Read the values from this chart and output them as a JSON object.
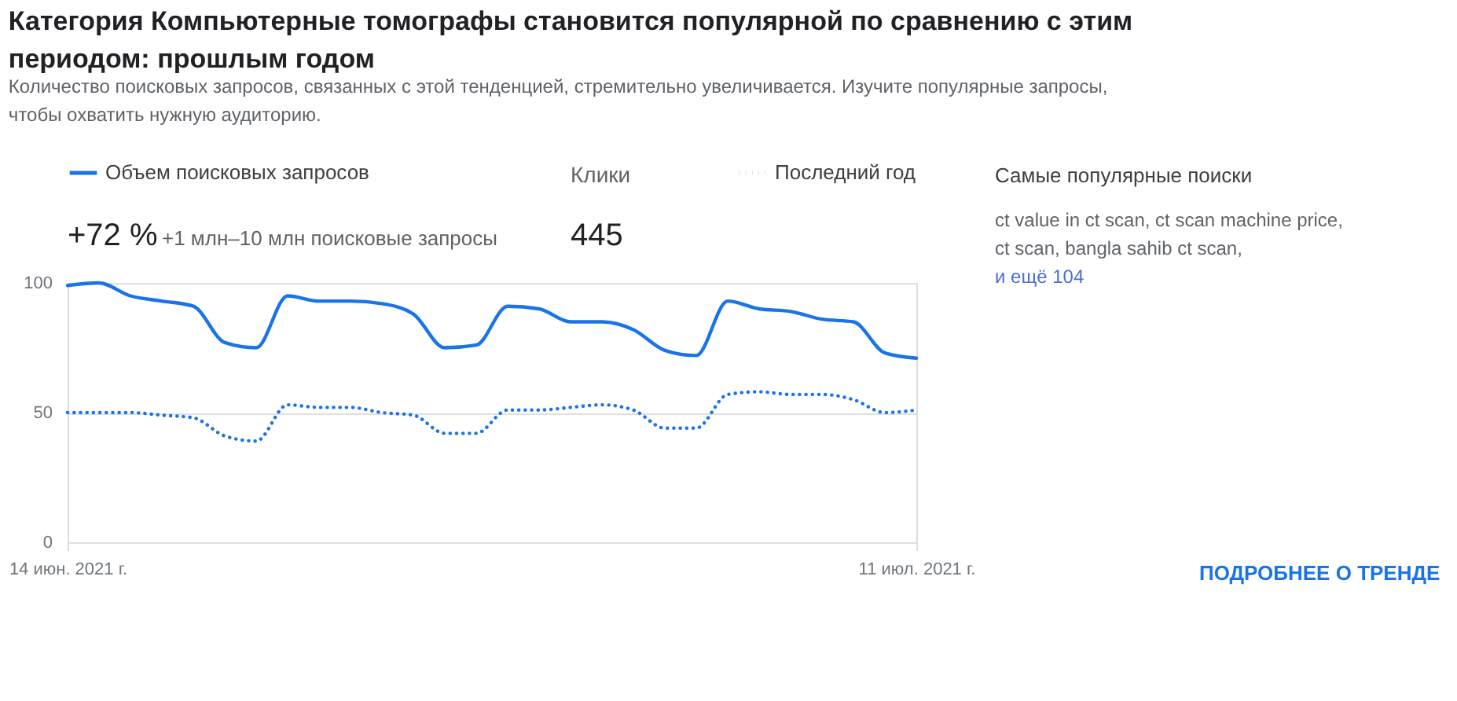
{
  "chart_data": {
    "type": "line",
    "title": "Категория Компьютерные томографы становится популярной по сравнению с этим периодом: прошлым годом",
    "subtitle": "Количество поисковых запросов, связанных с этой тенденцией, стремительно увеличивается. Изучите популярные запросы, чтобы охватить нужную аудиторию.",
    "x": [
      "2021-06-14",
      "2021-06-15",
      "2021-06-16",
      "2021-06-17",
      "2021-06-18",
      "2021-06-19",
      "2021-06-20",
      "2021-06-21",
      "2021-06-22",
      "2021-06-23",
      "2021-06-24",
      "2021-06-25",
      "2021-06-26",
      "2021-06-27",
      "2021-06-28",
      "2021-06-29",
      "2021-06-30",
      "2021-07-01",
      "2021-07-02",
      "2021-07-03",
      "2021-07-04",
      "2021-07-05",
      "2021-07-06",
      "2021-07-07",
      "2021-07-08",
      "2021-07-09",
      "2021-07-10",
      "2021-07-11"
    ],
    "series": [
      {
        "name": "Объем поисковых запросов",
        "color": "#1a73e8",
        "line_style": "solid",
        "values": [
          99,
          100,
          95,
          93,
          91,
          77,
          75,
          95,
          93,
          93,
          92,
          88,
          75,
          76,
          91,
          90,
          85,
          85,
          82,
          74,
          72,
          93,
          90,
          89,
          86,
          85,
          73,
          71
        ]
      },
      {
        "name": "Последний год",
        "color": "#1a73e8",
        "line_style": "dotted",
        "values": [
          50,
          50,
          50,
          49,
          48,
          41,
          39,
          53,
          52,
          52,
          50,
          49,
          42,
          42,
          51,
          51,
          52,
          53,
          51,
          44,
          44,
          57,
          58,
          57,
          57,
          55,
          50,
          51
        ]
      }
    ],
    "xlim": [
      "2021-06-14",
      "2021-07-11"
    ],
    "xticks": [
      {
        "value": "2021-06-14",
        "label": "14 июн. 2021 г."
      },
      {
        "value": "2021-07-11",
        "label": "11 июл. 2021 г."
      }
    ],
    "ylim": [
      0,
      100
    ],
    "yticks": [
      0,
      50,
      100
    ],
    "grid": "y",
    "legend": "top",
    "annotations": [
      "+72 %",
      "+1 млн–10 млн поисковые запросы",
      "Клики",
      "445",
      "Самые популярные поиски",
      "ct value in ct scan, ct scan machine price, ct scan, bangla sahib ct scan,",
      "и ещё 104",
      "ПОДРОБНЕЕ О ТРЕНДЕ"
    ]
  }
}
